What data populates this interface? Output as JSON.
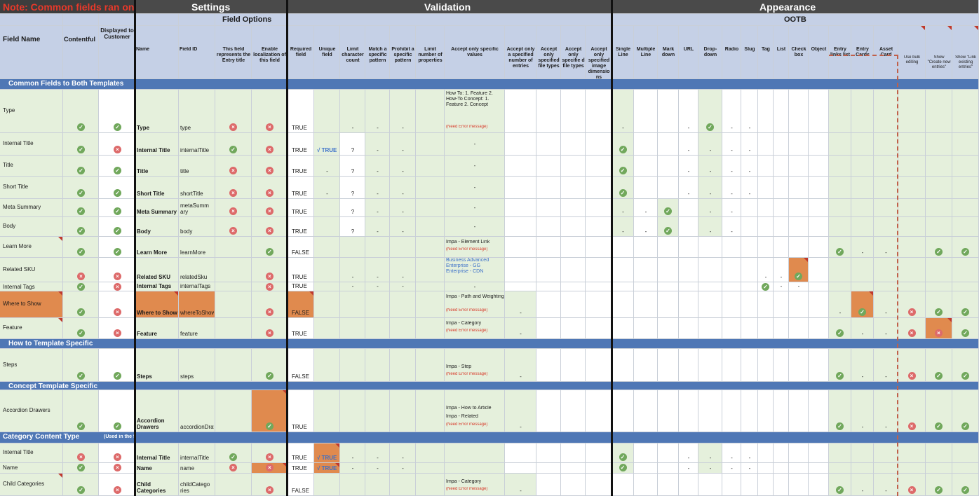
{
  "sections": {
    "note": "Note: Common fields ran on",
    "settings": "Settings",
    "field_options": "Field Options",
    "validation": "Validation",
    "appearance": "Appearance",
    "ootb": "OOTB"
  },
  "col_headers": {
    "field_name": "Field Name",
    "contentful": "Contentful",
    "displayed": "Displayed to Customer",
    "name": "Name",
    "field_id": "Field ID",
    "entry_title": "This field represents the Entry title",
    "localization": "Enable localization of this field",
    "required": "Required field",
    "unique": "Unique field",
    "limit_char": "Limit character count",
    "match": "Match a specific pattern",
    "prohibit": "Prohibit a specific pattern",
    "limit_props": "Limit number of properties",
    "accept_values": "Accept only specific values",
    "accept_entries": "Accept only a specified number of entries",
    "accept_file": "Accept only specified file types",
    "accept_file2": "Accept only specifie d file types",
    "accept_dims": "Accept only specified image dimensio ns",
    "single_line": "Single Line",
    "multi_line": "Multiple Line",
    "markdown": "Mark down",
    "url": "URL",
    "dropdown": "Drop-down",
    "radio": "Radio",
    "slug": "Slug",
    "tag": "Tag",
    "list": "List",
    "checkbox": "Check box",
    "object": "Object",
    "entry_links": "Entry links list",
    "entry_cards": "Entry Cards",
    "asset_card": "Asset Card",
    "bulk": "Use bulk editing",
    "create_new": "Show \"Create new entries\"",
    "link_existing": "Show \"Link existing entries\""
  },
  "bands": {
    "common": "Common Fields to Both Templates",
    "howto": "How to Template Specific",
    "concept": "Concept Template Specific",
    "category_main": "Category Content Type ",
    "category_note": "(Used in the feature"
  },
  "rows": [
    {
      "label": "Type",
      "name": "Type",
      "id": "type",
      "required": "TRUE"
    },
    {
      "label": "Internal Title",
      "name": "Internal Title",
      "id": "internalTitle",
      "required": "TRUE"
    },
    {
      "label": "Title",
      "name": "Title",
      "id": "title",
      "required": "TRUE"
    },
    {
      "label": "Short Title",
      "name": "Short Title",
      "id": "shortTitle",
      "required": "TRUE"
    },
    {
      "label": "Meta Summary",
      "name": "Meta Summary",
      "id": "metaSumm ary",
      "required": "TRUE"
    },
    {
      "label": "Body",
      "name": "Body",
      "id": "body",
      "required": "TRUE"
    },
    {
      "label": "Learn More",
      "name": "Learn More",
      "id": "learnMore",
      "required": "FALSE"
    },
    {
      "label": "Related SKU",
      "name": "Related SKU",
      "id": "relatedSku",
      "required": "TRUE"
    },
    {
      "label": "Internal Tags",
      "name": "Internal Tags",
      "id": "internalTags",
      "required": "TRUE"
    },
    {
      "label": "Where to Show",
      "name": "Where to Show",
      "id": "whereToShow",
      "required": "FALSE"
    },
    {
      "label": "Feature",
      "name": "Feature",
      "id": "feature",
      "required": "TRUE"
    },
    {
      "label": "Steps",
      "name": "Steps",
      "id": "steps",
      "required": "FALSE"
    },
    {
      "label": "Accordion Drawers",
      "name": "Accordion Drawers",
      "id": "accordionDrawers",
      "required": "TRUE"
    },
    {
      "label": "Internal Title",
      "name": "Internal Title",
      "id": "internalTitle",
      "required": "TRUE"
    },
    {
      "label": "Name",
      "name": "Name",
      "id": "name",
      "required": "TRUE"
    },
    {
      "label": "Child Categories",
      "name": "Child Categories",
      "id": "childCatego ries",
      "required": "FALSE"
    }
  ],
  "values": {
    "dash": "-",
    "q": "?",
    "unique_true": "√ TRUE",
    "type_values": "How To: 1. Feature 2. How-To Concept: 1. Feature 2. Concept",
    "need_error": "(Need Error message)",
    "learn_more": "Impa - Element Link",
    "related_sku": "Business Advanced Enterprise - GG Enterprise - CDN",
    "where_to_show": "Impa - Path and Weighting",
    "where_err": "(Need Error message)",
    "feature": "Impa - Category",
    "feature_err": "(Need Error message)",
    "steps": "Impa - Step",
    "accordion_1": "Impa - How to Article",
    "accordion_2": "Impa - Related",
    "child_categories": "Impa - Category"
  },
  "colors": {
    "dark_header": "#4a4a4a",
    "blue_header": "#c5d0e6",
    "band": "#4f77b5",
    "green_cell": "#e5f0dc",
    "orange_cell": "#e08a4e",
    "check": "#71a85c",
    "cross": "#dd6a6a",
    "note_red": "#e8392a"
  },
  "icons": {
    "check": "check-circle-icon",
    "cross": "cross-circle-icon",
    "comment": "comment-marker-icon"
  }
}
